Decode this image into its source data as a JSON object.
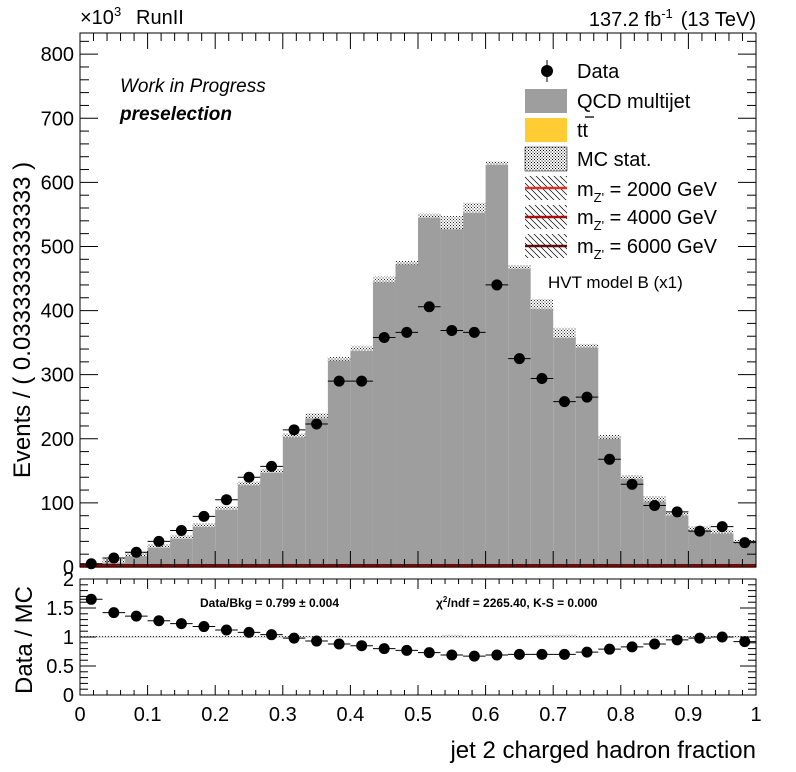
{
  "chart_data": {
    "type": "bar",
    "header_left": "RunII",
    "lumi_value": "137.2 fb",
    "lumi_exponent": "-1",
    "energy": "(13 TeV)",
    "status": "Work in Progress",
    "selection": "preselection",
    "y_multiplier": "×10",
    "y_multiplier_exp": "3",
    "ylabel": "Events / ( 0.0333333333333 )",
    "xlabel": "jet 2 charged hadron fraction",
    "ratio_ylabel": "Data / MC",
    "signal_model_label": "HVT model B (x1)",
    "ratio_text_left": "Data/Bkg = 0.799 ± 0.004",
    "ratio_text_right_chi": "χ",
    "ratio_text_right_rest": "/ndf = 2265.40,   K-S = 0.000",
    "legend": [
      {
        "key": "data",
        "label": "Data"
      },
      {
        "key": "qcd",
        "label": "QCD multijet"
      },
      {
        "key": "ttbar",
        "label": "tt"
      },
      {
        "key": "mcstat",
        "label": "MC stat."
      },
      {
        "key": "sig2000",
        "label": "m",
        "sub": "Z'",
        "suffix": " = 2000 GeV"
      },
      {
        "key": "sig4000",
        "label": "m",
        "sub": "Z'",
        "suffix": " = 4000 GeV"
      },
      {
        "key": "sig6000",
        "label": "m",
        "sub": "Z'",
        "suffix": " = 6000 GeV"
      }
    ],
    "colors": {
      "qcd": "#9e9e9e",
      "ttbar": "#ffcc33",
      "sig2000": "#d9342b",
      "sig4000": "#a31010",
      "sig6000": "#5c0c0c",
      "data": "#000000"
    },
    "xlim": [
      0,
      1
    ],
    "ylim": [
      0,
      833
    ],
    "ratio_ylim": [
      0,
      2
    ],
    "x_ticks": [
      "0",
      "0.1",
      "0.2",
      "0.3",
      "0.4",
      "0.5",
      "0.6",
      "0.7",
      "0.8",
      "0.9",
      "1"
    ],
    "y_ticks": [
      "0",
      "100",
      "200",
      "300",
      "400",
      "500",
      "600",
      "700",
      "800"
    ],
    "ratio_y_ticks": [
      "0",
      "0.5",
      "1",
      "1.5",
      "2"
    ],
    "bin_width": 0.0333333,
    "qcd_values": [
      3,
      10,
      20,
      33,
      47,
      65,
      92,
      130,
      150,
      205,
      235,
      325,
      340,
      447,
      475,
      548,
      530,
      555,
      630,
      468,
      405,
      360,
      345,
      203,
      140,
      105,
      83,
      60,
      55,
      40
    ],
    "qcd_unc_top": [
      3,
      10,
      20,
      33,
      47,
      65,
      92,
      130,
      150,
      205,
      237,
      325,
      342,
      450,
      475,
      548,
      545,
      565,
      630,
      468,
      415,
      370,
      345,
      203,
      140,
      107,
      83,
      60,
      55,
      40
    ],
    "data_values": [
      5,
      14,
      23,
      40,
      57,
      79,
      105,
      140,
      157,
      214,
      223,
      290,
      290,
      358,
      366,
      406,
      369,
      366,
      440,
      325,
      294,
      258,
      265,
      168,
      129,
      96,
      86,
      56,
      63,
      38
    ],
    "ratio_values": [
      1.65,
      1.42,
      1.36,
      1.28,
      1.23,
      1.18,
      1.12,
      1.08,
      1.04,
      0.98,
      0.93,
      0.88,
      0.85,
      0.8,
      0.77,
      0.73,
      0.69,
      0.67,
      0.69,
      0.7,
      0.7,
      0.7,
      0.74,
      0.79,
      0.83,
      0.88,
      0.95,
      0.98,
      1.0,
      0.92
    ],
    "signal_level": 2
  }
}
